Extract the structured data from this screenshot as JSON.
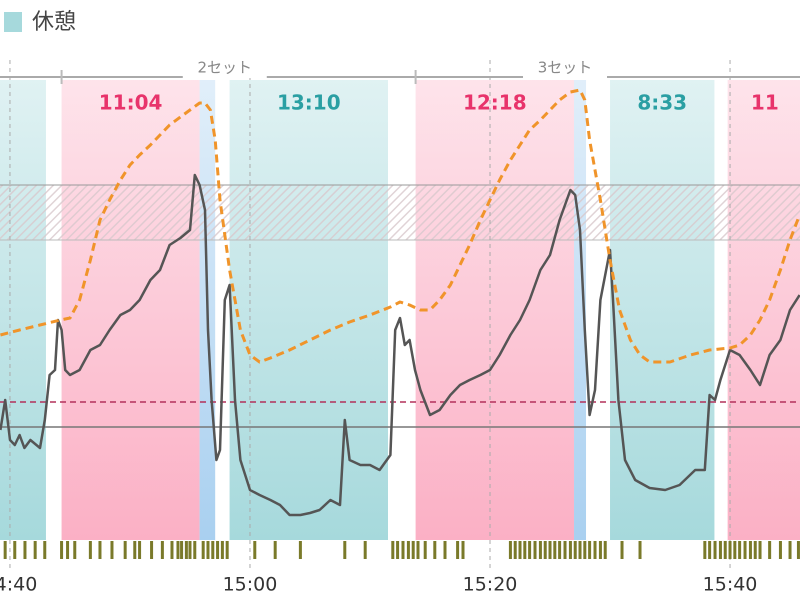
{
  "chart_data": {
    "type": "line",
    "legend": {
      "label": "休憩",
      "color": "#a6d9dc"
    },
    "xlim": [
      39.17,
      105.83
    ],
    "ylim": [
      0,
      230
    ],
    "xticks": [
      {
        "value": 40,
        "label": "14:40"
      },
      {
        "value": 60,
        "label": "15:00"
      },
      {
        "value": 80,
        "label": "15:20"
      },
      {
        "value": 100,
        "label": "15:40"
      }
    ],
    "grid": true,
    "sets": [
      {
        "label": "2セット",
        "start": 44.3,
        "end": 71.5
      },
      {
        "label": "3セット",
        "start": 73.8,
        "end": 98.7
      }
    ],
    "bands": [
      {
        "start": 39.0,
        "end": 43.0,
        "color": "#a6d9dc"
      },
      {
        "start": 44.3,
        "end": 55.8,
        "color": "#fbb0c5",
        "label": "11:04",
        "label_color": "#e8336b"
      },
      {
        "start": 55.8,
        "end": 57.1,
        "color": "#a9d0f0"
      },
      {
        "start": 58.3,
        "end": 71.5,
        "color": "#a6d9dc",
        "label": "13:10",
        "label_color": "#2a9fa3"
      },
      {
        "start": 73.8,
        "end": 87.0,
        "color": "#fbb0c5",
        "label": "12:18",
        "label_color": "#e8336b"
      },
      {
        "start": 87.0,
        "end": 88.0,
        "color": "#a9d0f0"
      },
      {
        "start": 90.0,
        "end": 98.7,
        "color": "#a6d9dc",
        "label": "8:33",
        "label_color": "#2a9fa3"
      },
      {
        "start": 99.8,
        "end": 106.0,
        "color": "#fbb0c5",
        "label": "11",
        "label_color": "#e8336b"
      }
    ],
    "zone": [
      150,
      177.5
    ],
    "reference_lines": [
      {
        "value": 69,
        "color": "#b3305a",
        "dashed": true
      },
      {
        "value": 56.5,
        "color": "#777777",
        "dashed": false
      }
    ],
    "series": [
      {
        "color": "#555555",
        "dashed": false,
        "x": [
          39.2,
          39.6,
          40,
          40.4,
          40.8,
          41.2,
          41.7,
          42.5,
          42.9,
          43.3,
          43.75,
          44,
          44.3,
          44.6,
          45,
          45.8,
          46.7,
          47.5,
          48.3,
          49.2,
          50,
          50.8,
          51.7,
          52.5,
          53.3,
          54.2,
          55,
          55.4,
          55.8,
          56.25,
          56.5,
          56.8,
          57.2,
          57.5,
          57.9,
          58.3,
          58.75,
          59.2,
          60,
          60.8,
          61.7,
          62.5,
          63.3,
          64.2,
          65,
          65.8,
          66.7,
          67.5,
          67.9,
          68.3,
          69.2,
          70,
          70.8,
          71.7,
          72.1,
          72.5,
          72.9,
          73.3,
          73.75,
          74.2,
          75,
          75.8,
          76.7,
          77.5,
          78.3,
          79.2,
          80,
          80.8,
          81.7,
          82.5,
          83.3,
          84.2,
          85,
          85.8,
          86.7,
          87.1,
          87.5,
          87.9,
          88.3,
          88.75,
          89.2,
          89.6,
          90,
          90.25,
          90.7,
          91.25,
          92.1,
          93.3,
          94.6,
          95.8,
          97.1,
          97.9,
          98.3,
          98.75,
          99.2,
          100,
          100.8,
          101.7,
          102.5,
          103.3,
          104.2,
          105,
          105.8
        ],
        "values": [
          55,
          70,
          50,
          47.5,
          52.5,
          46,
          50,
          46,
          60,
          82.5,
          85,
          110,
          105,
          85,
          82.5,
          85,
          95,
          97.5,
          105,
          112.5,
          115,
          120,
          130,
          135,
          147.5,
          151,
          155,
          182.5,
          177.5,
          165,
          105,
          70,
          40,
          45,
          120,
          127.5,
          70,
          40,
          25,
          22.5,
          20,
          17.5,
          12.5,
          12.5,
          13.5,
          15,
          20,
          17.5,
          60,
          40,
          37.5,
          37.5,
          35,
          42.5,
          105,
          111,
          97.5,
          100,
          85,
          75,
          62.5,
          65,
          72.5,
          77.5,
          80,
          82.5,
          85,
          92.5,
          102.5,
          110,
          120,
          135,
          142.5,
          160,
          175,
          172.5,
          155,
          105,
          62.5,
          75,
          120,
          132.5,
          145,
          120,
          70,
          40,
          30,
          26,
          25,
          27.5,
          35,
          35,
          72.5,
          70,
          80,
          95,
          92.5,
          85,
          77.5,
          92.5,
          100,
          115,
          122.5
        ]
      },
      {
        "color": "#f0942a",
        "dashed": true,
        "x": [
          39.2,
          40.8,
          42.5,
          44.2,
          45,
          45.8,
          46.7,
          47.5,
          48.3,
          49.2,
          50,
          50.8,
          51.7,
          52.5,
          53.3,
          54.2,
          55,
          55.8,
          56.25,
          56.7,
          57.1,
          57.5,
          58.3,
          59.2,
          60,
          60.8,
          61.7,
          63.3,
          65,
          66.7,
          68.3,
          70,
          71.7,
          72.5,
          73.3,
          74.2,
          75,
          75.8,
          76.7,
          77.5,
          78.3,
          79.2,
          80,
          80.8,
          81.7,
          82.5,
          83.3,
          84.2,
          85,
          85.8,
          86.7,
          87.5,
          87.9,
          88.3,
          89.2,
          90,
          90.8,
          91.7,
          92.5,
          93.3,
          95,
          96.7,
          98.3,
          100,
          100.8,
          101.7,
          102.5,
          103.3,
          104.2,
          105,
          105.8
        ],
        "values": [
          102.5,
          105,
          107.5,
          110,
          111,
          120,
          140,
          160,
          170,
          180,
          187.5,
          192.5,
          197.5,
          202.5,
          207.5,
          211.5,
          215,
          218.5,
          218.5,
          215,
          200,
          170,
          135,
          105,
          92.5,
          89,
          91,
          95,
          100,
          105,
          109,
          112.5,
          116.5,
          119,
          117.5,
          115,
          115,
          120,
          127.5,
          137.5,
          147.5,
          160,
          170,
          180,
          190,
          197.5,
          205,
          210,
          215,
          220,
          224,
          225,
          220,
          200,
          170,
          140,
          115,
          100,
          92.5,
          89,
          89,
          92.5,
          95,
          96,
          97.5,
          102.5,
          110,
          120,
          135,
          150,
          162.5
        ]
      }
    ],
    "activity_marks": [
      39.6,
      40.4,
      41.25,
      42.1,
      42.9,
      44.3,
      44.8,
      45.4,
      46.7,
      47.5,
      48.5,
      49.6,
      50.4,
      50.8,
      51.8,
      52.7,
      53.5,
      54,
      54.3,
      54.7,
      55,
      55.4,
      56.1,
      56.5,
      56.9,
      57.3,
      57.7,
      58.1,
      60.4,
      62.1,
      64.2,
      67.9,
      69.6,
      71.9,
      72.3,
      72.75,
      73.2,
      73.6,
      74,
      74.6,
      75.4,
      76.25,
      77.3,
      77.75,
      81.7,
      82.1,
      82.5,
      82.9,
      83.3,
      83.75,
      84.2,
      84.6,
      85,
      85.4,
      85.8,
      86.25,
      86.7,
      87.1,
      87.5,
      87.9,
      88.3,
      88.75,
      89.2,
      89.6,
      91,
      92.5,
      97.9,
      98.3,
      98.75,
      99.2,
      99.6,
      100,
      100.4,
      100.8,
      101.25,
      101.7,
      102.1,
      102.5,
      103.3,
      104.2,
      105,
      105.7
    ],
    "activity_color": "#7a7a2a"
  }
}
